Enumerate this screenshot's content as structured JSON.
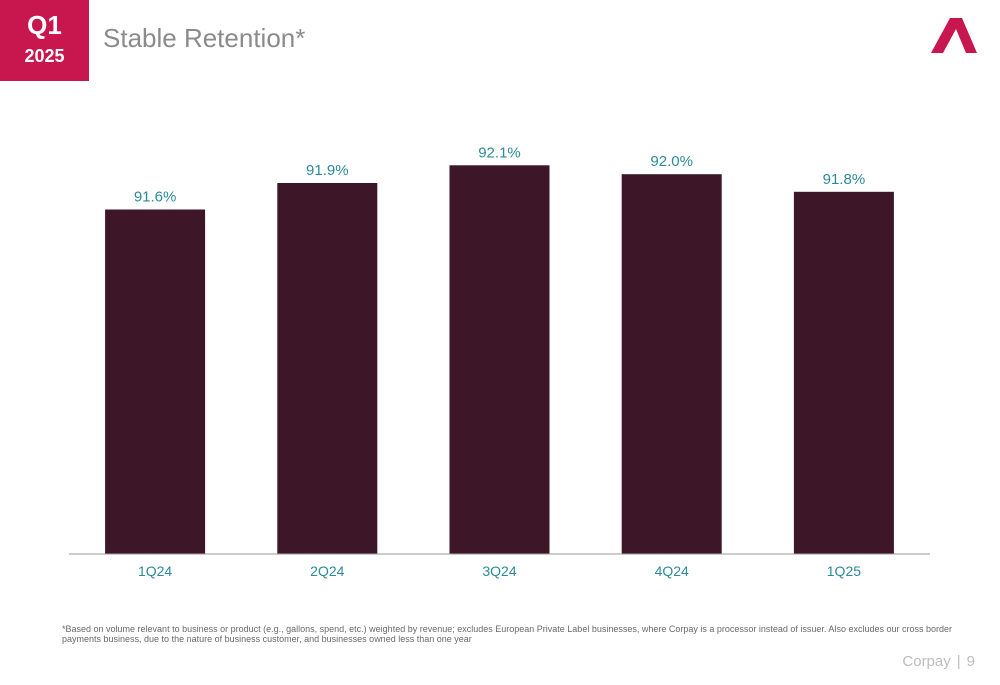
{
  "header": {
    "quarter": "Q1",
    "year": "2025",
    "title": "Stable Retention*"
  },
  "logo": {
    "icon": "corpay-logo-icon",
    "color": "#c8174f"
  },
  "chart_data": {
    "type": "bar",
    "title": "",
    "xlabel": "",
    "ylabel": "",
    "categories": [
      "1Q24",
      "2Q24",
      "3Q24",
      "4Q24",
      "1Q25"
    ],
    "values": [
      91.6,
      91.9,
      92.1,
      92.0,
      91.8
    ],
    "data_labels": [
      "91.6%",
      "91.9%",
      "92.1%",
      "92.0%",
      "91.8%"
    ],
    "unit": "%",
    "ylim": [
      87.7,
      92.5
    ],
    "grid": false,
    "legend": "none",
    "bar_color": "#3d1628",
    "label_color": "#2e8a9a"
  },
  "footnote": "*Based on volume relevant to business or product (e.g., gallons, spend, etc.) weighted by revenue; excludes European Private Label businesses, where Corpay is a processor instead of issuer. Also excludes our cross border payments business, due to the nature of business customer, and businesses owned less than one year",
  "footer": {
    "brand": "Corpay",
    "separator": "|",
    "page_number": "9"
  }
}
